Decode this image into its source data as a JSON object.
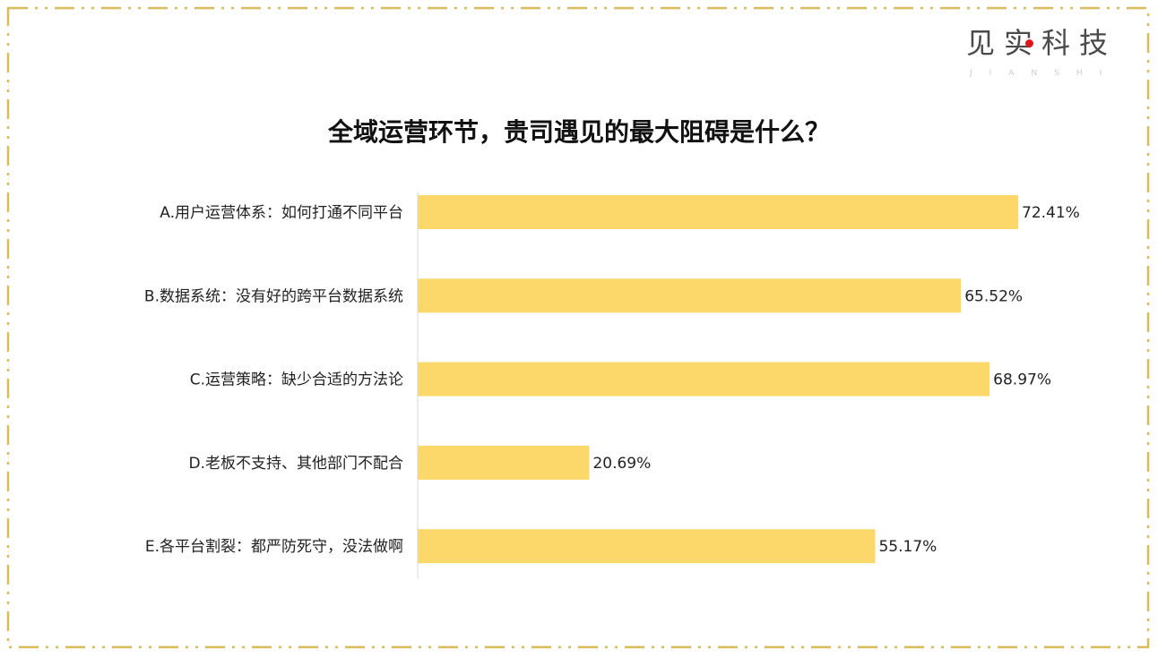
{
  "logo": {
    "text": "见实科技",
    "subtext": "JIANSHI",
    "dot_color": "#e0161b"
  },
  "border_color": "#d8bc5c",
  "chart_data": {
    "type": "bar",
    "orientation": "horizontal",
    "title": "全域运营环节，贵司遇见的最大阻碍是什么？",
    "categories": [
      "A.用户运营体系：如何打通不同平台",
      "B.数据系统：没有好的跨平台数据系统",
      "C.运营策略：缺少合适的方法论",
      "D.老板不支持、其他部门不配合",
      "E.各平台割裂：都严防死守，没法做啊"
    ],
    "values": [
      72.41,
      65.52,
      68.97,
      20.69,
      55.17
    ],
    "labels": [
      "72.41%",
      "65.52%",
      "68.97%",
      "20.69%",
      "55.17%"
    ],
    "unit": "%",
    "bar_color": "#fcd86a",
    "grid": false,
    "legend": "none"
  }
}
